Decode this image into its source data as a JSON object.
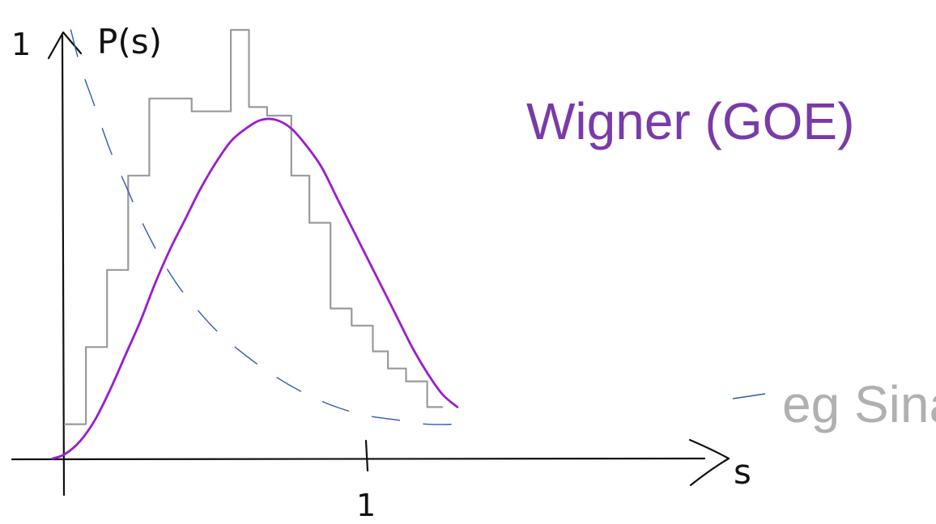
{
  "chart_data": {
    "type": "line",
    "title": "",
    "xlabel": "s",
    "ylabel": "P(s)",
    "xlim": [
      -0.2,
      1.35
    ],
    "ylim": [
      -0.1,
      1.1
    ],
    "x_ticks": [
      {
        "value": 1,
        "label": "1"
      }
    ],
    "y_ticks": [
      {
        "value": 1,
        "label": "1"
      }
    ],
    "grid": false,
    "series": [
      {
        "name": "Wigner (GOE)",
        "style": "solid-curve",
        "color": "#9b1bd1",
        "label_color": "#7a3aa8",
        "x": [
          -0.04,
          0.0,
          0.05,
          0.1,
          0.15,
          0.2,
          0.25,
          0.3,
          0.35,
          0.4,
          0.45,
          0.5,
          0.55,
          0.6,
          0.65,
          0.7,
          0.75,
          0.8,
          0.85,
          0.9,
          0.95,
          1.0,
          1.05,
          1.1,
          1.15,
          1.2,
          1.25,
          1.3
        ],
        "y": [
          0.0,
          0.01,
          0.04,
          0.09,
          0.16,
          0.24,
          0.32,
          0.41,
          0.49,
          0.56,
          0.63,
          0.69,
          0.74,
          0.77,
          0.79,
          0.79,
          0.77,
          0.73,
          0.68,
          0.61,
          0.54,
          0.47,
          0.4,
          0.33,
          0.26,
          0.2,
          0.15,
          0.12
        ]
      },
      {
        "name": "eg Sinai billiard",
        "style": "step-histogram",
        "color": "#9a9a9a",
        "label_color": "#b0b0b0",
        "bin_edges": [
          0.0,
          0.07,
          0.14,
          0.21,
          0.28,
          0.35,
          0.42,
          0.48,
          0.55,
          0.61,
          0.67,
          0.75,
          0.81,
          0.88,
          0.95,
          1.02,
          1.07,
          1.13,
          1.2,
          1.25
        ],
        "values": [
          0.08,
          0.26,
          0.44,
          0.66,
          0.84,
          0.84,
          0.81,
          0.81,
          1.0,
          0.82,
          0.8,
          0.66,
          0.55,
          0.35,
          0.31,
          0.25,
          0.21,
          0.18,
          0.12
        ]
      },
      {
        "name": "",
        "style": "dashed-curve",
        "color": "#2a5db0",
        "x": [
          0.02,
          0.05,
          0.1,
          0.15,
          0.2,
          0.25,
          0.3,
          0.35,
          0.4,
          0.5,
          0.6,
          0.7,
          0.8,
          0.9,
          1.0,
          1.1,
          1.2,
          1.3
        ],
        "y": [
          1.0,
          0.92,
          0.82,
          0.72,
          0.64,
          0.56,
          0.49,
          0.43,
          0.38,
          0.3,
          0.24,
          0.19,
          0.15,
          0.12,
          0.1,
          0.09,
          0.08,
          0.08
        ]
      }
    ]
  }
}
